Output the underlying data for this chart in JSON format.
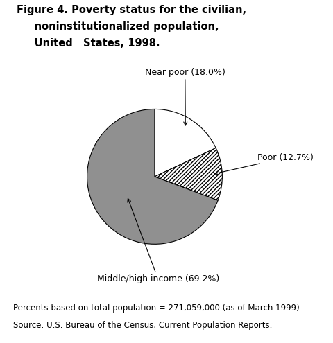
{
  "title_line1": "Figure 4. Poverty status for the civilian,",
  "title_line2": "     noninstitutionalized population,",
  "title_line3": "     United   States, 1998.",
  "slices": [
    {
      "label": "Near poor (18.0%)",
      "value": 18.0,
      "color": "#ffffff",
      "hatch": null
    },
    {
      "label": "Poor (12.7%)",
      "value": 12.7,
      "color": "#ffffff",
      "hatch": "//////"
    },
    {
      "label": "Middle/high income (69.2%)",
      "value": 69.2,
      "color": "#909090",
      "hatch": null
    }
  ],
  "footnote1": "Percents based on total population = 271,059,000 (as of March 1999)",
  "footnote2": "Source: U.S. Bureau of the Census, Current Population Reports.",
  "background_color": "#ffffff",
  "startangle": 90,
  "title_fontsize": 10.5,
  "label_fontsize": 9,
  "footnote_fontsize": 8.5
}
